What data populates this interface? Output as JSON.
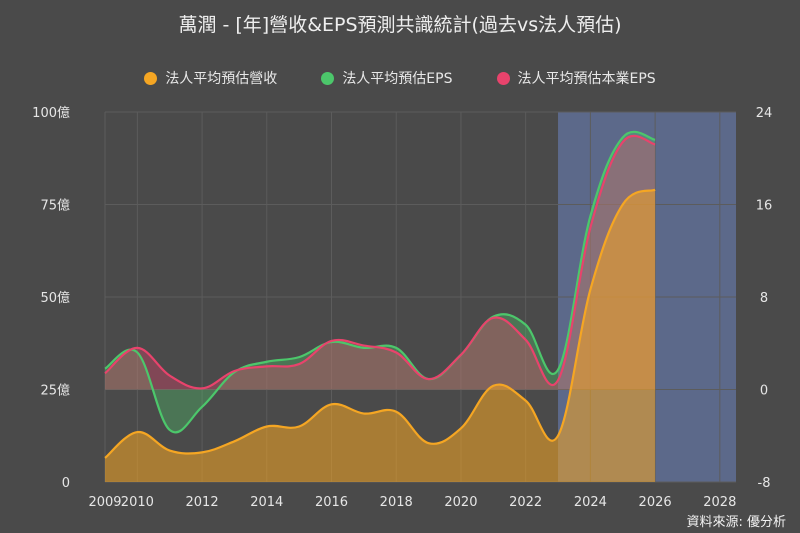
{
  "chart_data": {
    "type": "line",
    "title": "萬潤 - [年]營收&EPS預測共識統計(過去vs法人預估)",
    "source": "資料來源: 優分析",
    "x_ticks": [
      2009,
      2010,
      2012,
      2014,
      2016,
      2018,
      2020,
      2022,
      2024,
      2026,
      2028
    ],
    "xlim": [
      2009,
      2028.5
    ],
    "forecast_start_x": 2023,
    "left_axis": {
      "ticks": [
        0,
        25,
        50,
        75,
        100
      ],
      "tick_labels": [
        "0",
        "25億",
        "50億",
        "75億",
        "100億"
      ],
      "ylim": [
        0,
        100
      ]
    },
    "right_axis": {
      "ticks": [
        -8,
        0,
        8,
        16,
        24
      ],
      "tick_labels": [
        "-8",
        "0",
        "8",
        "16",
        "24"
      ],
      "ylim": [
        -8,
        24
      ]
    },
    "legend_position": "top",
    "series": [
      {
        "name": "法人平均預估營收",
        "axis": "left",
        "color": "#f5a623",
        "x": [
          2009,
          2010,
          2011,
          2012,
          2013,
          2014,
          2015,
          2016,
          2017,
          2018,
          2019,
          2020,
          2021,
          2022,
          2023,
          2024,
          2025,
          2026
        ],
        "values": [
          6.5,
          13.5,
          8.5,
          8.0,
          11.0,
          15.0,
          15.0,
          21.0,
          18.5,
          19.0,
          10.5,
          14.5,
          26.0,
          22.0,
          12.5,
          52.0,
          75.0,
          79.0
        ]
      },
      {
        "name": "法人平均預估EPS",
        "axis": "right",
        "color": "#4cc76b",
        "x": [
          2009,
          2010,
          2011,
          2012,
          2013,
          2014,
          2015,
          2016,
          2017,
          2018,
          2019,
          2020,
          2021,
          2022,
          2023,
          2024,
          2025,
          2026
        ],
        "values": [
          1.8,
          3.2,
          -3.5,
          -1.5,
          1.5,
          2.4,
          2.8,
          4.1,
          3.6,
          3.6,
          0.9,
          3.0,
          6.3,
          5.6,
          1.7,
          15.0,
          21.8,
          21.6
        ]
      },
      {
        "name": "法人平均預估本業EPS",
        "axis": "right",
        "color": "#e8436c",
        "x": [
          2009,
          2010,
          2011,
          2012,
          2013,
          2014,
          2015,
          2016,
          2017,
          2018,
          2019,
          2020,
          2021,
          2022,
          2023,
          2024,
          2025,
          2026
        ],
        "values": [
          1.4,
          3.6,
          1.2,
          0.1,
          1.6,
          2.0,
          2.2,
          4.2,
          3.8,
          3.2,
          0.9,
          3.0,
          6.2,
          4.3,
          0.8,
          14.0,
          21.4,
          21.2
        ]
      }
    ]
  }
}
